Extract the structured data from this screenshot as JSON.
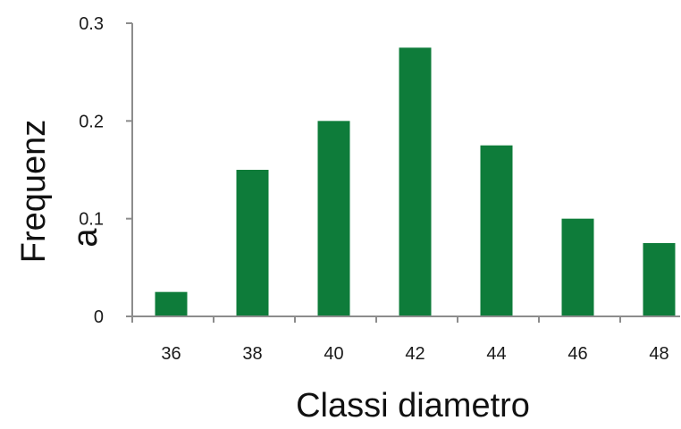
{
  "chart_data": {
    "type": "bar",
    "categories": [
      "36",
      "38",
      "40",
      "42",
      "44",
      "46",
      "48"
    ],
    "values": [
      0.025,
      0.15,
      0.2,
      0.275,
      0.175,
      0.1,
      0.075
    ],
    "ylim": [
      0,
      0.3
    ],
    "yticks": [
      "0",
      "0.1",
      "0.2",
      "0.3"
    ],
    "xlabel": "Classi diametro",
    "ylabel_lines": [
      "Frequenz",
      "a"
    ],
    "bar_color": "#0e7c3a",
    "grid": false,
    "legend": "none"
  }
}
